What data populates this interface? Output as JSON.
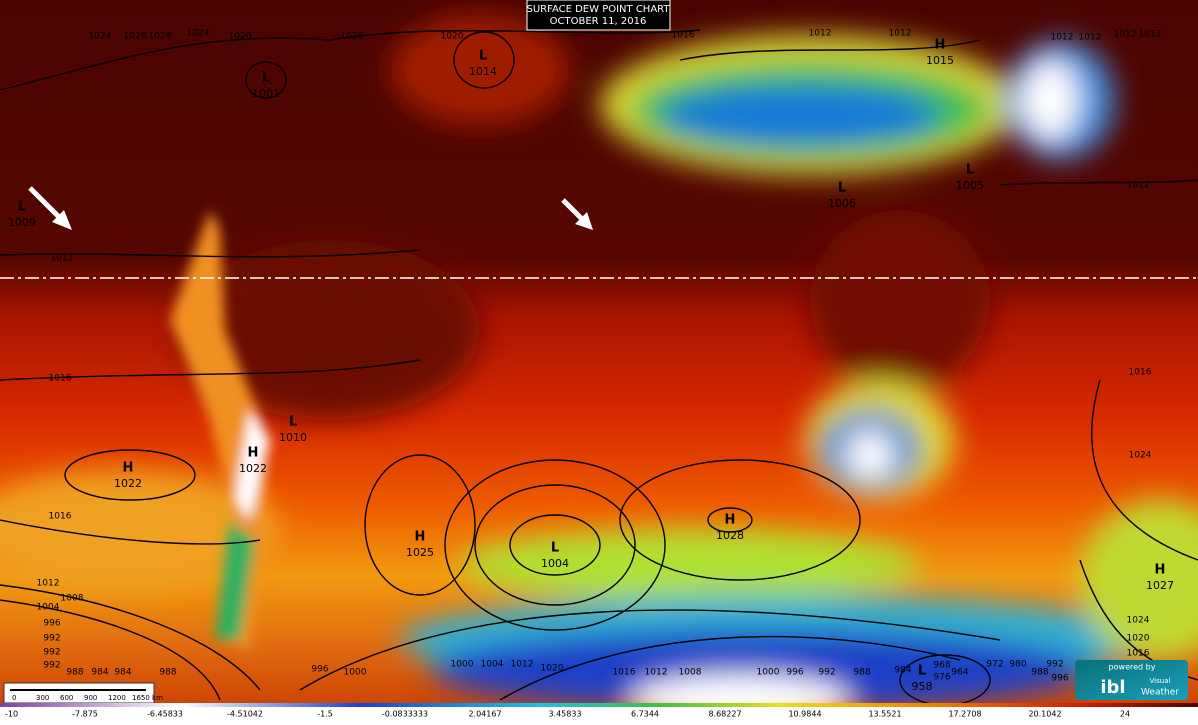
{
  "header": {
    "title": "SURFACE DEW POINT CHART",
    "date": "OCTOBER 11, 2016"
  },
  "pressure_centers": [
    {
      "symbol": "L",
      "value": 1014
    },
    {
      "symbol": "L",
      "value": 1001
    },
    {
      "symbol": "H",
      "value": 1015
    },
    {
      "symbol": "L",
      "value": 1009
    },
    {
      "symbol": "L",
      "value": 1006
    },
    {
      "symbol": "L",
      "value": 1005
    },
    {
      "symbol": "L",
      "value": 1010
    },
    {
      "symbol": "H",
      "value": 1022
    },
    {
      "symbol": "H",
      "value": 1022
    },
    {
      "symbol": "H",
      "value": 1025
    },
    {
      "symbol": "L",
      "value": 1004
    },
    {
      "symbol": "H",
      "value": 1028
    },
    {
      "symbol": "H",
      "value": 1027
    },
    {
      "symbol": "L",
      "value": 958
    }
  ],
  "isobar_labels": [
    1024,
    1028,
    1028,
    1024,
    1020,
    1020,
    1020,
    1016,
    1012,
    1012,
    1012,
    1012,
    1012,
    1012,
    1012,
    1016,
    1016,
    1016,
    1012,
    1024,
    1024,
    1020,
    1016,
    1012,
    1008,
    1004,
    996,
    992,
    992,
    992,
    988,
    984,
    984,
    988,
    996,
    1000,
    1000,
    1004,
    1012,
    1020,
    1016,
    1012,
    1008,
    1000,
    996,
    992,
    988,
    984,
    968,
    976,
    964,
    972,
    980,
    988,
    992,
    996
  ],
  "colorbar": {
    "ticks": [
      -10,
      -7.875,
      -6.45833,
      -4.51042,
      -1.5,
      -0.0833333,
      2.04167,
      3.45833,
      6.7344,
      8.68227,
      10.9844,
      13.5521,
      17.2708,
      20.1042,
      24
    ]
  },
  "scale_bar": {
    "labels": [
      "0",
      "300",
      "600",
      "900",
      "1200",
      "1650 km"
    ]
  },
  "logo": {
    "powered": "powered by",
    "brand": "ibl",
    "product_1": "Visual",
    "product_2": "Weather"
  }
}
